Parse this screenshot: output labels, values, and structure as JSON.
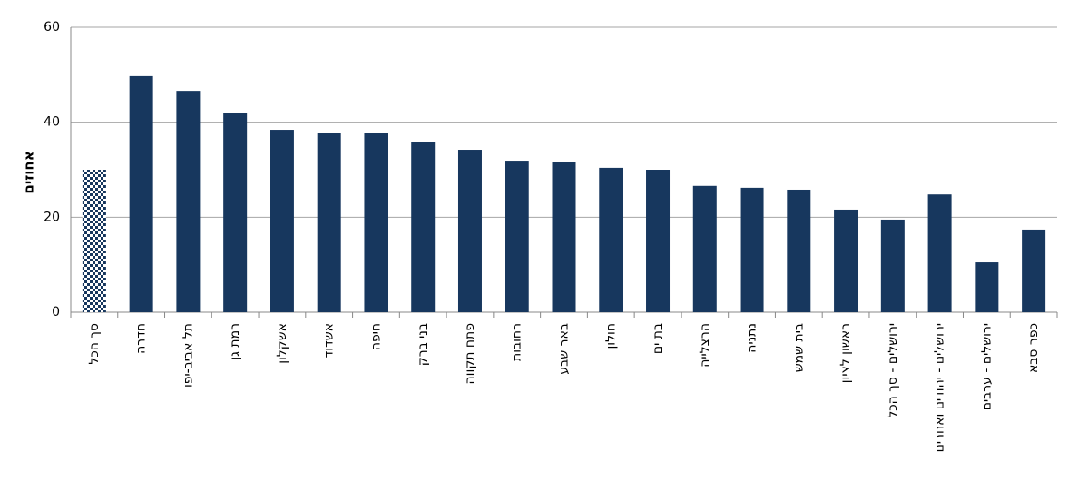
{
  "chart_data": {
    "type": "bar",
    "y_label": "אחוזים",
    "categories": [
      "סך הכל",
      "חדרה",
      "תל אביב-יפו",
      "רמת גן",
      "אשקלון",
      "אשדוד",
      "חיפה",
      "בני ברק",
      "פתח תקווה",
      "רחובות",
      "באר שבע",
      "חולון",
      "בת ים",
      "הרצלייה",
      "נתניה",
      "בית שמש",
      "ראשון לציון",
      "ירושלים - סך הכל",
      "ירושלים - יהודים ואחרים",
      "ירושלים - ערבים",
      "כפר סבא"
    ],
    "values": [
      30.0,
      49.7,
      46.6,
      42.0,
      38.4,
      37.8,
      37.8,
      35.9,
      34.2,
      31.9,
      31.7,
      30.4,
      30.0,
      26.6,
      26.2,
      25.8,
      21.6,
      19.5,
      24.8,
      10.5,
      17.4
    ],
    "color": "#17375e",
    "pattern_index": 0,
    "ylim": [
      0,
      60
    ],
    "yticks": [
      0,
      20,
      40,
      60
    ],
    "grid": true
  }
}
